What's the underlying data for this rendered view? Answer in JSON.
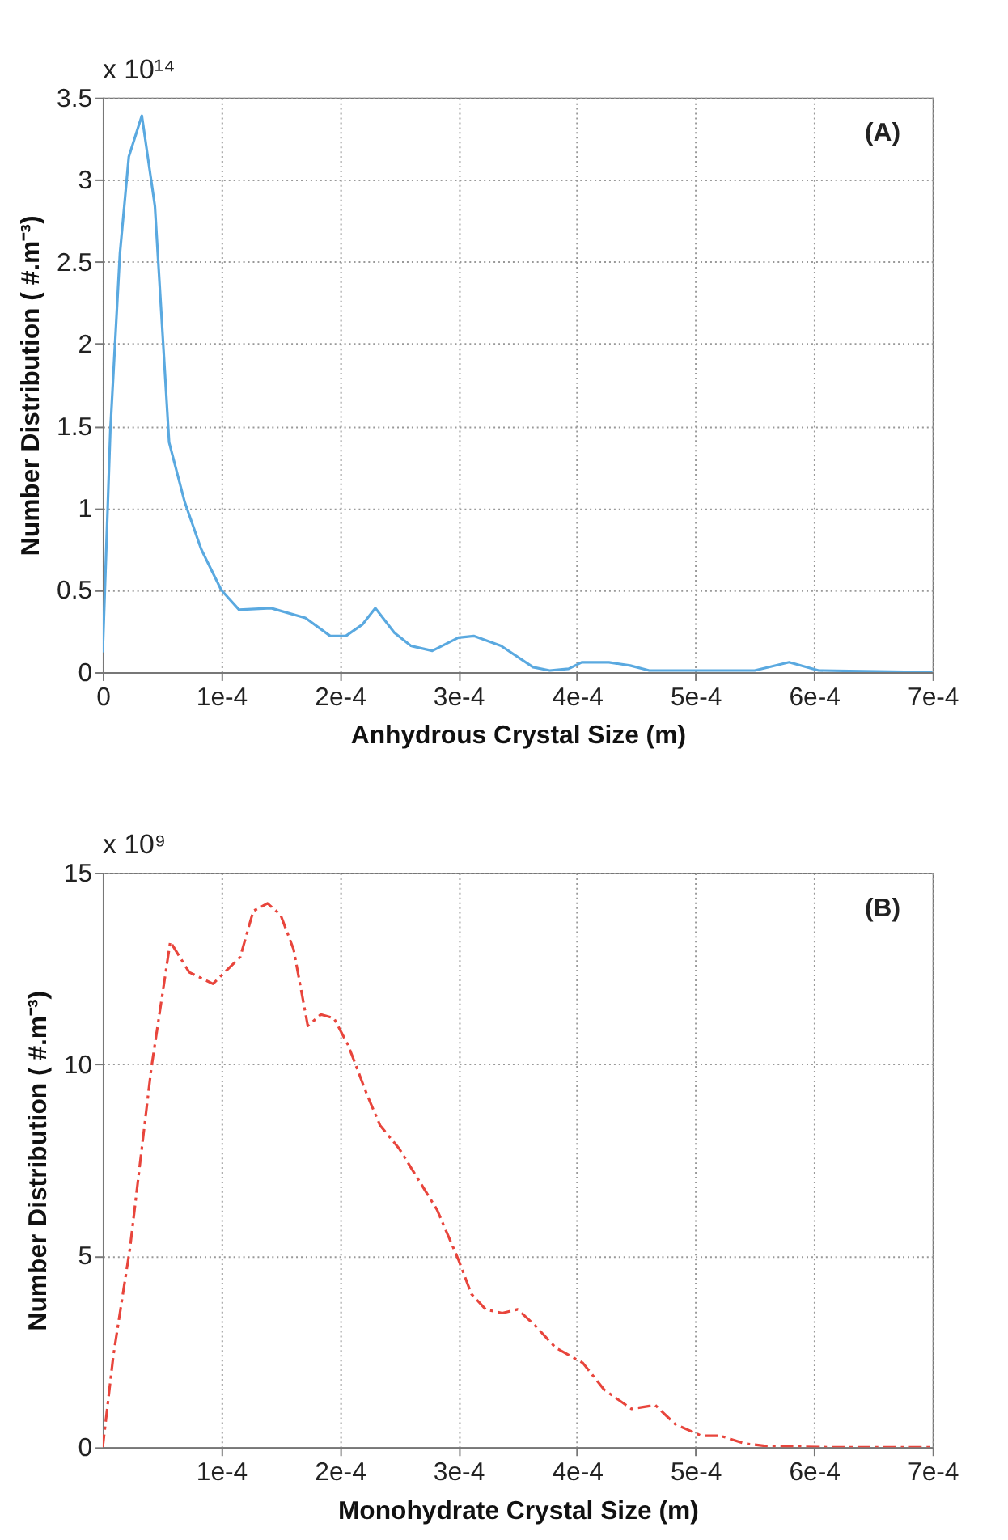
{
  "chart_data": [
    {
      "type": "line",
      "xlabel": "Anhydrous Crystal Size (m)",
      "ylabel": "Number Distribution ( #.m⁻³)",
      "annotations": [
        "x 10¹⁴",
        "(A)"
      ],
      "x": [
        0,
        6.4e-06,
        1.45e-05,
        2.2e-05,
        3.3e-05,
        4.4e-05,
        5.6e-05,
        6.9e-05,
        8.3e-05,
        0.0001,
        0.000115,
        0.000142,
        0.000171,
        0.000192,
        0.000205,
        0.000219,
        0.00023,
        0.000246,
        0.00026,
        0.000278,
        0.0003,
        0.000313,
        0.000336,
        0.000363,
        0.000377,
        0.000393,
        0.000404,
        0.000427,
        0.000445,
        0.000461,
        0.00055,
        0.000579,
        0.000604,
        0.0007
      ],
      "series": [
        {
          "color": "#5aa9e0",
          "line_style": "solid",
          "values": [
            0.12,
            1.47,
            2.55,
            3.14,
            3.39,
            2.84,
            1.4,
            1.04,
            0.75,
            0.5,
            0.38,
            0.39,
            0.33,
            0.22,
            0.22,
            0.29,
            0.39,
            0.24,
            0.16,
            0.13,
            0.21,
            0.22,
            0.16,
            0.03,
            0.01,
            0.02,
            0.06,
            0.06,
            0.04,
            0.01,
            0.01,
            0.06,
            0.01,
            0
          ]
        }
      ],
      "xlim": [
        0,
        0.0007
      ],
      "xticks": [
        0,
        {
          "value": 0.0001,
          "label": "1e-4"
        },
        {
          "value": 0.0002,
          "label": "2e-4"
        },
        {
          "value": 0.0003,
          "label": "3e-4"
        },
        {
          "value": 0.0004,
          "label": "4e-4"
        },
        {
          "value": 0.0005,
          "label": "5e-4"
        },
        {
          "value": 0.0006,
          "label": "6e-4"
        },
        {
          "value": 0.0007,
          "label": "7e-4"
        }
      ],
      "ylim": [
        0,
        3.5
      ],
      "yticks": [
        0,
        0.5,
        1,
        1.5,
        2,
        2.5,
        3,
        3.5
      ],
      "grid": true
    },
    {
      "type": "line",
      "xlabel": "Monohydrate Crystal Size (m)",
      "ylabel": "Number Distribution ( #.m⁻³)",
      "annotations": [
        "x 10⁹",
        "(B)"
      ],
      "x": [
        0,
        9e-06,
        2.3e-05,
        4.1e-05,
        5.7e-05,
        7.3e-05,
        9.3e-05,
        0.000116,
        0.000127,
        0.000139,
        0.00015,
        0.000161,
        0.000173,
        0.000184,
        0.000195,
        0.000207,
        0.000223,
        0.000234,
        0.00025,
        0.000266,
        0.000282,
        0.0003,
        0.000311,
        0.000323,
        0.000337,
        0.00035,
        0.000364,
        0.000382,
        0.000405,
        0.000423,
        0.000446,
        0.000466,
        0.000483,
        0.000505,
        0.000521,
        0.000541,
        0.00056,
        0.000614,
        0.0007
      ],
      "series": [
        {
          "color": "#e8453c",
          "line_style": "dashed",
          "values": [
            0,
            2.4,
            5.2,
            9.9,
            13.2,
            12.4,
            12.1,
            12.8,
            14.0,
            14.2,
            13.9,
            13.0,
            11.0,
            11.3,
            11.2,
            10.5,
            9.2,
            8.4,
            7.8,
            7.0,
            6.2,
            4.9,
            4.0,
            3.6,
            3.5,
            3.6,
            3.2,
            2.6,
            2.2,
            1.5,
            1.0,
            1.1,
            0.6,
            0.3,
            0.3,
            0.1,
            0.03,
            0,
            0
          ]
        }
      ],
      "xlim": [
        0,
        0.0007
      ],
      "xticks": [
        {
          "value": 0.0001,
          "label": "1e-4"
        },
        {
          "value": 0.0002,
          "label": "2e-4"
        },
        {
          "value": 0.0003,
          "label": "3e-4"
        },
        {
          "value": 0.0004,
          "label": "4e-4"
        },
        {
          "value": 0.0005,
          "label": "5e-4"
        },
        {
          "value": 0.0006,
          "label": "6e-4"
        },
        {
          "value": 0.0007,
          "label": "7e-4"
        }
      ],
      "ylim": [
        0,
        15
      ],
      "yticks": [
        0,
        5,
        10,
        15
      ],
      "grid": true
    }
  ]
}
